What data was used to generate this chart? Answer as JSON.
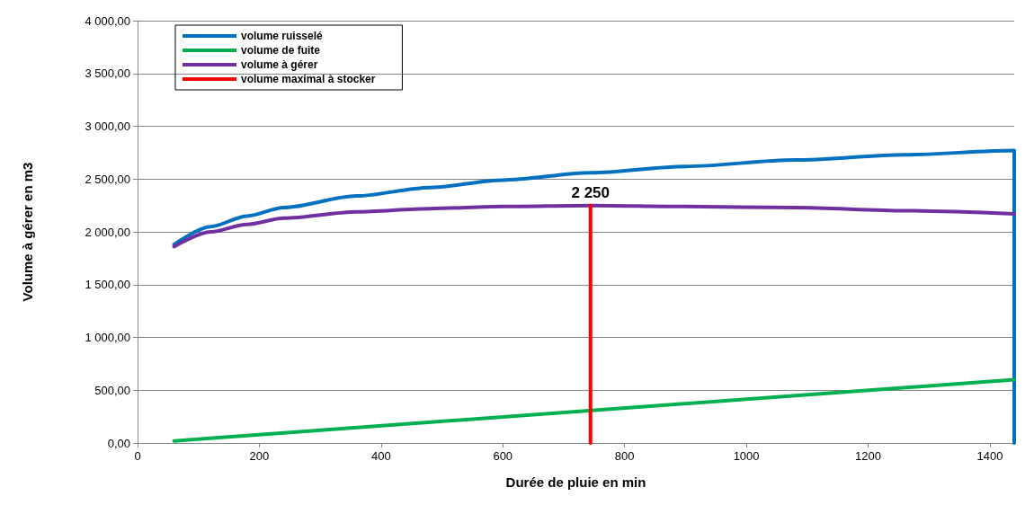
{
  "chart_data": {
    "type": "line",
    "xlabel": "Durée de pluie en min",
    "ylabel": "Volume à gérer en m3",
    "xlim": [
      0,
      1440
    ],
    "xticks": [
      0,
      200,
      400,
      600,
      800,
      1000,
      1200,
      1400
    ],
    "ylim": [
      0,
      4000
    ],
    "yticks": [
      {
        "value": 0,
        "label": "0,00"
      },
      {
        "value": 500,
        "label": "500,00"
      },
      {
        "value": 1000,
        "label": "1 000,00"
      },
      {
        "value": 1500,
        "label": "1 500,00"
      },
      {
        "value": 2000,
        "label": "2 000,00"
      },
      {
        "value": 2500,
        "label": "2 500,00"
      },
      {
        "value": 3000,
        "label": "3 000,00"
      },
      {
        "value": 3500,
        "label": "3 500,00"
      },
      {
        "value": 4000,
        "label": "4 000,00"
      }
    ],
    "grid": "y",
    "legend": "top left",
    "marker": "none",
    "line_style": "solid",
    "series": [
      {
        "name": "volume ruisselé",
        "color": "#0070c0",
        "x": [
          60,
          120,
          180,
          240,
          360,
          480,
          600,
          744,
          900,
          1080,
          1260,
          1440,
          1440
        ],
        "values": [
          1880,
          2050,
          2150,
          2230,
          2340,
          2420,
          2490,
          2560,
          2620,
          2680,
          2730,
          2770,
          0
        ]
      },
      {
        "name": "volume de fuite",
        "color": "#00b050",
        "x": [
          60,
          1440
        ],
        "values": [
          20,
          600
        ]
      },
      {
        "name": "volume à gérer",
        "color": "#7030a0",
        "x": [
          60,
          120,
          180,
          240,
          360,
          480,
          600,
          744,
          900,
          1080,
          1260,
          1440
        ],
        "values": [
          1860,
          2000,
          2070,
          2130,
          2190,
          2220,
          2240,
          2250,
          2240,
          2230,
          2200,
          2170
        ]
      },
      {
        "name": "volume maximal à stocker",
        "color": "#ff0000",
        "x": [
          744,
          744
        ],
        "values": [
          0,
          2250
        ],
        "value_labels": [
          null,
          "2 250"
        ]
      }
    ]
  }
}
